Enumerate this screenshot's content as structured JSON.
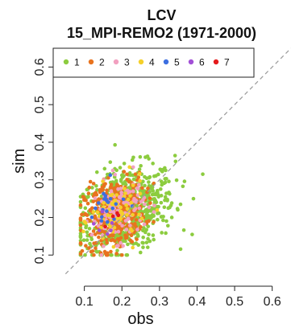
{
  "chart_data": {
    "type": "scatter",
    "title": "LCV",
    "subtitle": "15_MPI-REMO2 (1971-2000)",
    "xlabel": "obs",
    "ylabel": "sim",
    "xlim": [
      0.03,
      0.65
    ],
    "ylim": [
      0.03,
      0.65
    ],
    "xticks": [
      0.1,
      0.2,
      0.3,
      0.4,
      0.5,
      0.6
    ],
    "yticks": [
      0.1,
      0.2,
      0.3,
      0.4,
      0.5,
      0.6
    ],
    "xtick_labels": [
      "0.1",
      "0.2",
      "0.3",
      "0.4",
      "0.5",
      "0.6"
    ],
    "ytick_labels": [
      "0.1",
      "0.2",
      "0.3",
      "0.4",
      "0.5",
      "0.6"
    ],
    "grid": false,
    "reference_line": "y = x (dashed grey)",
    "legend_position": "top",
    "series": [
      {
        "name": "1",
        "color": "#8ccc3f",
        "count": 700,
        "center": [
          0.21,
          0.22
        ],
        "spread": [
          0.065,
          0.055
        ]
      },
      {
        "name": "2",
        "color": "#e8731e",
        "count": 420,
        "center": [
          0.18,
          0.21
        ],
        "spread": [
          0.04,
          0.045
        ]
      },
      {
        "name": "3",
        "color": "#f2a0c0",
        "count": 140,
        "center": [
          0.19,
          0.22
        ],
        "spread": [
          0.035,
          0.04
        ]
      },
      {
        "name": "4",
        "color": "#f5d02a",
        "count": 70,
        "center": [
          0.19,
          0.21
        ],
        "spread": [
          0.035,
          0.04
        ]
      },
      {
        "name": "5",
        "color": "#3d6fe0",
        "count": 22,
        "center": [
          0.16,
          0.22
        ],
        "spread": [
          0.03,
          0.035
        ]
      },
      {
        "name": "6",
        "color": "#a24fd6",
        "count": 6,
        "center": [
          0.17,
          0.2
        ],
        "spread": [
          0.02,
          0.03
        ]
      },
      {
        "name": "7",
        "color": "#e41a1c",
        "count": 4,
        "center": [
          0.18,
          0.2
        ],
        "spread": [
          0.02,
          0.02
        ]
      }
    ]
  }
}
